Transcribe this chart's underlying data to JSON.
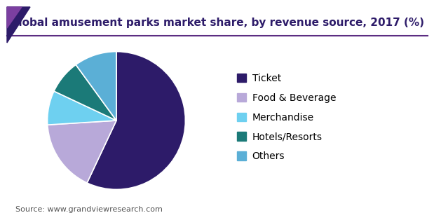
{
  "title": "Global amusement parks market share, by revenue source, 2017 (%)",
  "labels": [
    "Ticket",
    "Food & Beverage",
    "Merchandise",
    "Hotels/Resorts",
    "Others"
  ],
  "values": [
    57,
    17,
    8,
    8,
    10
  ],
  "colors": [
    "#2d1b69",
    "#b8a9d9",
    "#6ed0f0",
    "#1b7a78",
    "#5bafd6"
  ],
  "source": "Source: www.grandviewresearch.com",
  "title_fontsize": 11,
  "legend_fontsize": 10,
  "source_fontsize": 8,
  "background_color": "#ffffff",
  "startangle": 90,
  "title_color": "#2d1b69",
  "source_color": "#555555",
  "line_color": "#5c2d82",
  "triangle_color1": "#2d1b69",
  "triangle_color2": "#7b3fa0"
}
